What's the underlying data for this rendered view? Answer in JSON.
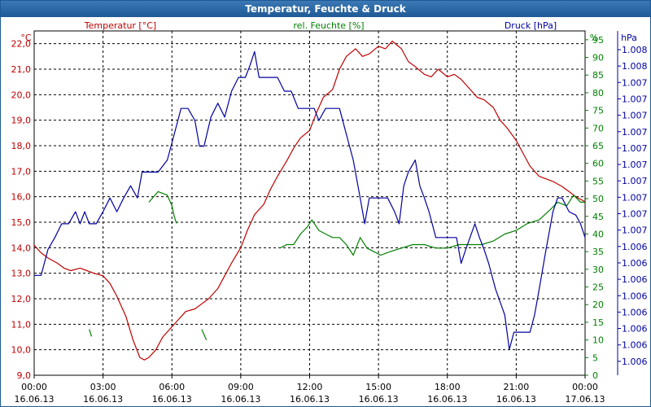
{
  "title": "Temperatur, Feuchte & Druck",
  "chart_data": {
    "type": "line",
    "title": "Temperatur, Feuchte & Druck",
    "x_ticks": [
      {
        "time": "00:00",
        "date": "16.06.13"
      },
      {
        "time": "03:00",
        "date": "16.06.13"
      },
      {
        "time": "06:00",
        "date": "16.06.13"
      },
      {
        "time": "09:00",
        "date": "16.06.13"
      },
      {
        "time": "12:00",
        "date": "16.06.13"
      },
      {
        "time": "15:00",
        "date": "16.06.13"
      },
      {
        "time": "18:00",
        "date": "16.06.13"
      },
      {
        "time": "21:00",
        "date": "16.06.13"
      },
      {
        "time": "00:00",
        "date": "17.06.13"
      }
    ],
    "x_range_hours": [
      0,
      24
    ],
    "axes": {
      "temperature": {
        "label": "Temperatur [°C]",
        "unit": "°C",
        "range": [
          9.0,
          22.5
        ],
        "ticks": [
          "22,0",
          "21,0",
          "20,0",
          "19,0",
          "18,0",
          "17,0",
          "16,0",
          "15,0",
          "14,0",
          "13,0",
          "12,0",
          "11,0",
          "10,0",
          "9,0"
        ],
        "tick_values": [
          22,
          21,
          20,
          19,
          18,
          17,
          16,
          15,
          14,
          13,
          12,
          11,
          10,
          9
        ],
        "color": "#c00000"
      },
      "humidity": {
        "label": "rel. Feuchte [%]",
        "unit": "%",
        "range": [
          0,
          97.5
        ],
        "ticks": [
          "95",
          "90",
          "85",
          "80",
          "75",
          "70",
          "65",
          "60",
          "55",
          "50",
          "45",
          "40",
          "35",
          "30",
          "25",
          "20",
          "15",
          "10",
          "5",
          "0"
        ],
        "tick_values": [
          95,
          90,
          85,
          80,
          75,
          70,
          65,
          60,
          55,
          50,
          45,
          40,
          35,
          30,
          25,
          20,
          15,
          10,
          5,
          0
        ],
        "color": "#008000"
      },
      "pressure": {
        "label": "Druck [hPa]",
        "unit": "hPa",
        "range": [
          0,
          20
        ],
        "ticks": [
          "1.008",
          "1.008",
          "1.007",
          "1.007",
          "1.007",
          "1.007",
          "1.007",
          "1.007",
          "1.007",
          "1.007",
          "1.007",
          "1.007",
          "1.006",
          "1.006",
          "1.006",
          "1.006",
          "1.006",
          "1.006",
          "1.006",
          "1.006"
        ],
        "color": "#0000a0"
      }
    },
    "grid": true,
    "series": [
      {
        "name": "Temperatur [°C]",
        "axis": "temperature",
        "color": "#c00000",
        "points": [
          [
            0,
            14.1
          ],
          [
            0.3,
            13.8
          ],
          [
            0.6,
            13.6
          ],
          [
            1,
            13.4
          ],
          [
            1.3,
            13.2
          ],
          [
            1.6,
            13.1
          ],
          [
            2,
            13.2
          ],
          [
            2.3,
            13.1
          ],
          [
            2.6,
            13.0
          ],
          [
            3,
            12.9
          ],
          [
            3.3,
            12.6
          ],
          [
            3.6,
            12.1
          ],
          [
            4,
            11.3
          ],
          [
            4.3,
            10.4
          ],
          [
            4.6,
            9.7
          ],
          [
            4.8,
            9.6
          ],
          [
            5,
            9.7
          ],
          [
            5.3,
            10.0
          ],
          [
            5.6,
            10.5
          ],
          [
            6,
            10.9
          ],
          [
            6.3,
            11.2
          ],
          [
            6.6,
            11.5
          ],
          [
            7,
            11.6
          ],
          [
            7.3,
            11.8
          ],
          [
            7.6,
            12.0
          ],
          [
            8,
            12.4
          ],
          [
            8.3,
            12.9
          ],
          [
            8.6,
            13.4
          ],
          [
            9,
            14.0
          ],
          [
            9.3,
            14.7
          ],
          [
            9.6,
            15.3
          ],
          [
            10,
            15.7
          ],
          [
            10.3,
            16.3
          ],
          [
            10.6,
            16.8
          ],
          [
            11,
            17.4
          ],
          [
            11.3,
            17.9
          ],
          [
            11.6,
            18.3
          ],
          [
            12,
            18.6
          ],
          [
            12.3,
            19.3
          ],
          [
            12.6,
            19.9
          ],
          [
            13,
            20.2
          ],
          [
            13.3,
            21.0
          ],
          [
            13.6,
            21.5
          ],
          [
            14,
            21.8
          ],
          [
            14.3,
            21.5
          ],
          [
            14.6,
            21.6
          ],
          [
            15,
            21.9
          ],
          [
            15.3,
            21.8
          ],
          [
            15.6,
            22.1
          ],
          [
            16,
            21.8
          ],
          [
            16.3,
            21.3
          ],
          [
            16.6,
            21.1
          ],
          [
            17,
            20.8
          ],
          [
            17.3,
            20.7
          ],
          [
            17.6,
            21.0
          ],
          [
            18,
            20.7
          ],
          [
            18.3,
            20.8
          ],
          [
            18.6,
            20.6
          ],
          [
            19,
            20.2
          ],
          [
            19.3,
            19.9
          ],
          [
            19.6,
            19.8
          ],
          [
            20,
            19.5
          ],
          [
            20.3,
            19.0
          ],
          [
            20.6,
            18.7
          ],
          [
            21,
            18.2
          ],
          [
            21.3,
            17.7
          ],
          [
            21.6,
            17.2
          ],
          [
            22,
            16.8
          ],
          [
            22.3,
            16.7
          ],
          [
            22.6,
            16.6
          ],
          [
            23,
            16.4
          ],
          [
            23.3,
            16.2
          ],
          [
            23.6,
            16.0
          ],
          [
            24,
            15.8
          ]
        ]
      },
      {
        "name": "rel. Feuchte [%]",
        "axis": "humidity",
        "color": "#008000",
        "segments": [
          [
            [
              2.4,
              13
            ],
            [
              2.5,
              11
            ]
          ],
          [
            [
              5.0,
              49
            ],
            [
              5.4,
              52
            ],
            [
              5.8,
              51
            ],
            [
              6.0,
              48
            ],
            [
              6.1,
              45
            ],
            [
              6.2,
              43
            ]
          ],
          [
            [
              7.3,
              13
            ],
            [
              7.5,
              10
            ]
          ],
          [
            [
              10.7,
              36
            ],
            [
              11.0,
              37
            ],
            [
              11.3,
              37
            ],
            [
              11.6,
              40
            ],
            [
              11.9,
              42
            ],
            [
              12.1,
              44
            ],
            [
              12.4,
              41
            ],
            [
              12.7,
              40
            ],
            [
              13.0,
              39
            ],
            [
              13.3,
              39
            ],
            [
              13.6,
              37
            ],
            [
              13.9,
              34
            ],
            [
              14.2,
              39
            ],
            [
              14.5,
              36
            ],
            [
              14.8,
              35
            ],
            [
              15.1,
              34
            ],
            [
              15.5,
              35
            ],
            [
              16.0,
              36
            ],
            [
              16.5,
              37
            ],
            [
              17.0,
              37
            ],
            [
              17.5,
              36
            ],
            [
              18.0,
              36
            ],
            [
              18.5,
              37
            ],
            [
              19.0,
              37
            ],
            [
              19.5,
              37
            ],
            [
              20.0,
              38
            ],
            [
              20.5,
              40
            ],
            [
              21.0,
              41
            ],
            [
              21.5,
              43
            ],
            [
              22.0,
              44
            ],
            [
              22.5,
              47
            ],
            [
              22.8,
              49
            ],
            [
              23.2,
              48
            ],
            [
              23.5,
              51
            ],
            [
              23.8,
              49
            ],
            [
              24.0,
              49
            ]
          ]
        ]
      },
      {
        "name": "Druck [hPa]",
        "axis": "pressure",
        "color": "#0000a0",
        "points": [
          [
            0,
            5.8
          ],
          [
            0.3,
            5.8
          ],
          [
            0.6,
            7.3
          ],
          [
            0.9,
            8.0
          ],
          [
            1.2,
            8.8
          ],
          [
            1.5,
            8.8
          ],
          [
            1.8,
            9.5
          ],
          [
            2.0,
            8.8
          ],
          [
            2.2,
            9.5
          ],
          [
            2.4,
            8.8
          ],
          [
            2.7,
            8.8
          ],
          [
            3.0,
            9.5
          ],
          [
            3.3,
            10.3
          ],
          [
            3.6,
            9.5
          ],
          [
            3.9,
            10.3
          ],
          [
            4.2,
            11.0
          ],
          [
            4.5,
            10.3
          ],
          [
            4.7,
            11.8
          ],
          [
            5.0,
            11.8
          ],
          [
            5.4,
            11.8
          ],
          [
            5.8,
            12.5
          ],
          [
            6.1,
            14.0
          ],
          [
            6.4,
            15.5
          ],
          [
            6.7,
            15.5
          ],
          [
            7.0,
            14.8
          ],
          [
            7.2,
            13.3
          ],
          [
            7.4,
            13.3
          ],
          [
            7.7,
            15.0
          ],
          [
            8.0,
            15.8
          ],
          [
            8.3,
            15.0
          ],
          [
            8.6,
            16.5
          ],
          [
            8.9,
            17.3
          ],
          [
            9.2,
            17.3
          ],
          [
            9.4,
            18.0
          ],
          [
            9.6,
            18.8
          ],
          [
            9.8,
            17.3
          ],
          [
            10.2,
            17.3
          ],
          [
            10.6,
            17.3
          ],
          [
            10.9,
            16.5
          ],
          [
            11.2,
            16.5
          ],
          [
            11.5,
            15.5
          ],
          [
            11.8,
            15.5
          ],
          [
            12.2,
            15.5
          ],
          [
            12.4,
            14.8
          ],
          [
            12.7,
            15.5
          ],
          [
            13.0,
            15.5
          ],
          [
            13.3,
            15.5
          ],
          [
            13.6,
            14.0
          ],
          [
            13.9,
            12.5
          ],
          [
            14.2,
            10.3
          ],
          [
            14.4,
            8.8
          ],
          [
            14.6,
            10.3
          ],
          [
            15.0,
            10.3
          ],
          [
            15.4,
            10.3
          ],
          [
            15.7,
            9.5
          ],
          [
            15.9,
            8.8
          ],
          [
            16.1,
            11.0
          ],
          [
            16.3,
            11.8
          ],
          [
            16.6,
            12.5
          ],
          [
            16.8,
            11.0
          ],
          [
            17.0,
            10.3
          ],
          [
            17.2,
            9.5
          ],
          [
            17.5,
            8.0
          ],
          [
            17.8,
            8.0
          ],
          [
            18.1,
            8.0
          ],
          [
            18.4,
            8.0
          ],
          [
            18.6,
            6.5
          ],
          [
            18.8,
            7.3
          ],
          [
            19.2,
            8.8
          ],
          [
            19.4,
            8.0
          ],
          [
            19.6,
            7.3
          ],
          [
            19.8,
            6.5
          ],
          [
            20.1,
            5.0
          ],
          [
            20.5,
            3.5
          ],
          [
            20.7,
            1.5
          ],
          [
            20.9,
            2.5
          ],
          [
            21.2,
            2.5
          ],
          [
            21.6,
            2.5
          ],
          [
            21.8,
            3.5
          ],
          [
            22.0,
            5.0
          ],
          [
            22.3,
            7.3
          ],
          [
            22.6,
            9.5
          ],
          [
            22.8,
            10.3
          ],
          [
            23.0,
            10.3
          ],
          [
            23.3,
            9.5
          ],
          [
            23.6,
            9.3
          ],
          [
            23.8,
            8.8
          ],
          [
            24.0,
            8.0
          ]
        ]
      }
    ]
  }
}
